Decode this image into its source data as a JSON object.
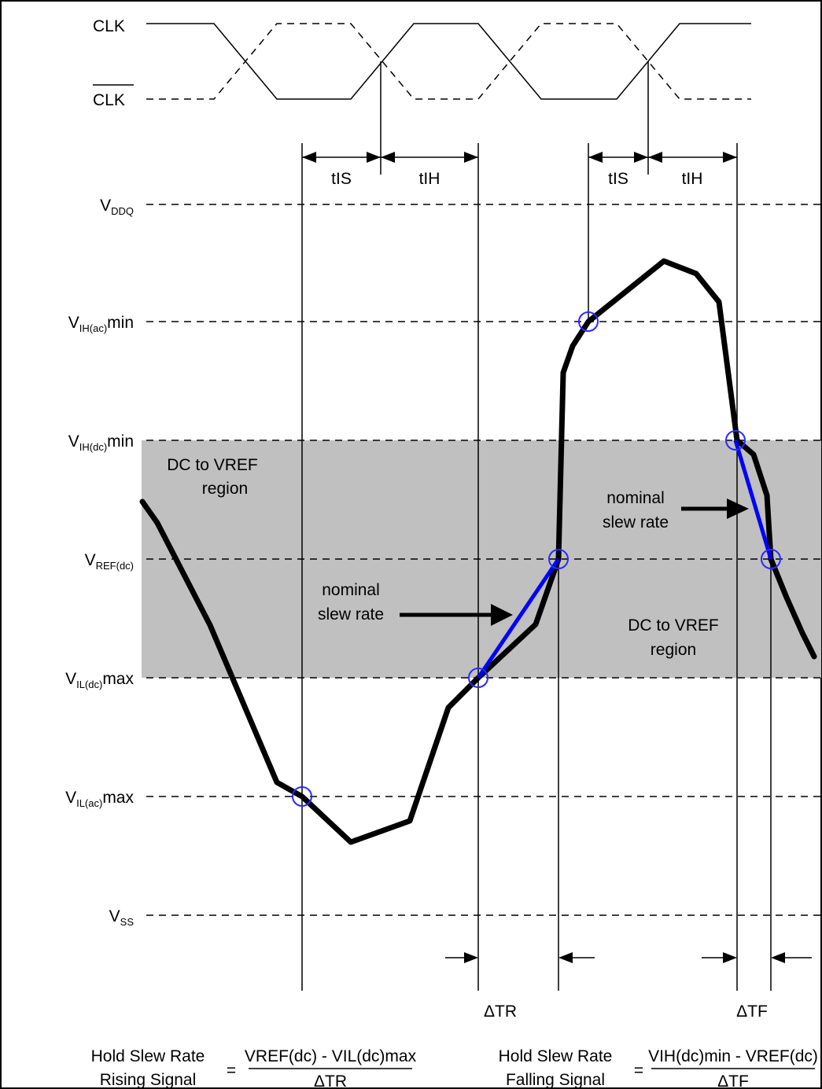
{
  "clock": {
    "clk_label": "CLK",
    "clk_bar_label": "CLK"
  },
  "timing": {
    "tis": "tIS",
    "tih": "tIH"
  },
  "levels": {
    "vddq": {
      "main": "V",
      "sub": "DDQ",
      "suffix": ""
    },
    "vih_ac": {
      "main": "V",
      "sub": "IH(ac)",
      "suffix": "min"
    },
    "vih_dc": {
      "main": "V",
      "sub": "IH(dc)",
      "suffix": "min"
    },
    "vref_dc": {
      "main": "V",
      "sub": "REF(dc)",
      "suffix": ""
    },
    "vil_dc": {
      "main": "V",
      "sub": "IL(dc)",
      "suffix": "max"
    },
    "vil_ac": {
      "main": "V",
      "sub": "IL(ac)",
      "suffix": "max"
    },
    "vss": {
      "main": "V",
      "sub": "SS",
      "suffix": ""
    }
  },
  "regions": {
    "left": {
      "line1": "DC to VREF",
      "line2": "region"
    },
    "right": {
      "line1": "DC to VREF",
      "line2": "region"
    }
  },
  "annotations": {
    "nominal_left": {
      "line1": "nominal",
      "line2": "slew rate"
    },
    "nominal_right": {
      "line1": "nominal",
      "line2": "slew rate"
    },
    "delta_tr": "ΔTR",
    "delta_tf": "ΔTF"
  },
  "formulas": {
    "rising": {
      "label1": "Hold Slew Rate",
      "label2": "Rising Signal",
      "equals": "=",
      "numerator": "VREF(dc) - VIL(dc)max",
      "denominator": "ΔTR"
    },
    "falling": {
      "label1": "Hold Slew Rate",
      "label2": "Falling Signal",
      "equals": "=",
      "numerator": "VIH(dc)min - VREF(dc)",
      "denominator": "ΔTF"
    }
  },
  "colors": {
    "nominal_line": "#0000ff",
    "crossing_circle": "#2a2aff",
    "region_fill": "#c0c0c0"
  }
}
